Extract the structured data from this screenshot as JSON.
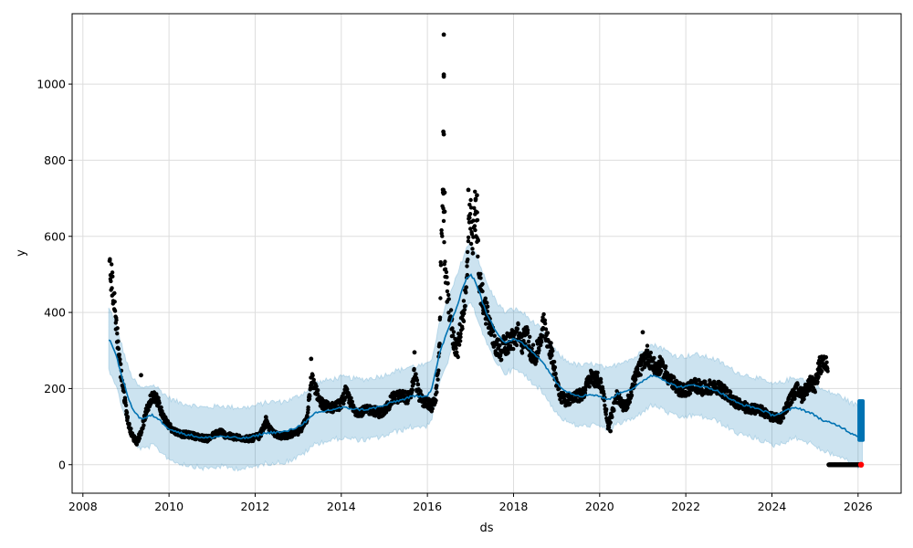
{
  "chart_data": {
    "type": "scatter",
    "subtype": "time-series forecast (observed points, fitted trend line, uncertainty band)",
    "xlabel": "ds",
    "ylabel": "y",
    "xlim": [
      2007.75,
      2027.0
    ],
    "ylim": [
      -75,
      1185
    ],
    "grid": true,
    "x_ticks": [
      {
        "value": 2008,
        "label": "2008"
      },
      {
        "value": 2010,
        "label": "2010"
      },
      {
        "value": 2012,
        "label": "2012"
      },
      {
        "value": 2014,
        "label": "2014"
      },
      {
        "value": 2016,
        "label": "2016"
      },
      {
        "value": 2018,
        "label": "2018"
      },
      {
        "value": 2020,
        "label": "2020"
      },
      {
        "value": 2022,
        "label": "2022"
      },
      {
        "value": 2024,
        "label": "2024"
      },
      {
        "value": 2026,
        "label": "2026"
      }
    ],
    "y_ticks": [
      {
        "value": 0,
        "label": "0"
      },
      {
        "value": 200,
        "label": "200"
      },
      {
        "value": 400,
        "label": "400"
      },
      {
        "value": 600,
        "label": "600"
      },
      {
        "value": 800,
        "label": "800"
      },
      {
        "value": 1000,
        "label": "1000"
      }
    ],
    "colors": {
      "observed": "#000000",
      "forecast": "#0072b2",
      "band": "#0072b2",
      "last_observed": "#ff0000",
      "grid": "#dddddd"
    },
    "observed_profile": [
      [
        2008.62,
        505
      ],
      [
        2008.68,
        480
      ],
      [
        2008.74,
        410
      ],
      [
        2008.8,
        340
      ],
      [
        2008.86,
        260
      ],
      [
        2008.95,
        190
      ],
      [
        2009.05,
        110
      ],
      [
        2009.15,
        75
      ],
      [
        2009.25,
        60
      ],
      [
        2009.35,
        85
      ],
      [
        2009.45,
        130
      ],
      [
        2009.55,
        165
      ],
      [
        2009.65,
        185
      ],
      [
        2009.75,
        165
      ],
      [
        2009.85,
        130
      ],
      [
        2009.95,
        110
      ],
      [
        2010.1,
        90
      ],
      [
        2010.3,
        80
      ],
      [
        2010.5,
        78
      ],
      [
        2010.7,
        72
      ],
      [
        2010.9,
        68
      ],
      [
        2011.0,
        75
      ],
      [
        2011.1,
        82
      ],
      [
        2011.2,
        88
      ],
      [
        2011.3,
        78
      ],
      [
        2011.5,
        72
      ],
      [
        2011.7,
        70
      ],
      [
        2011.9,
        68
      ],
      [
        2012.1,
        75
      ],
      [
        2012.25,
        110
      ],
      [
        2012.4,
        85
      ],
      [
        2012.6,
        75
      ],
      [
        2012.8,
        78
      ],
      [
        2013.0,
        85
      ],
      [
        2013.1,
        100
      ],
      [
        2013.2,
        120
      ],
      [
        2013.3,
        230
      ],
      [
        2013.4,
        200
      ],
      [
        2013.5,
        165
      ],
      [
        2013.6,
        155
      ],
      [
        2013.8,
        150
      ],
      [
        2014.0,
        160
      ],
      [
        2014.1,
        190
      ],
      [
        2014.2,
        170
      ],
      [
        2014.3,
        140
      ],
      [
        2014.5,
        140
      ],
      [
        2014.7,
        145
      ],
      [
        2014.9,
        135
      ],
      [
        2015.0,
        140
      ],
      [
        2015.2,
        175
      ],
      [
        2015.4,
        180
      ],
      [
        2015.6,
        175
      ],
      [
        2015.7,
        240
      ],
      [
        2015.8,
        185
      ],
      [
        2015.9,
        165
      ],
      [
        2016.0,
        165
      ],
      [
        2016.1,
        150
      ],
      [
        2016.2,
        180
      ],
      [
        2016.28,
        300
      ],
      [
        2016.32,
        590
      ],
      [
        2016.36,
        700
      ],
      [
        2016.42,
        480
      ],
      [
        2016.5,
        420
      ],
      [
        2016.6,
        330
      ],
      [
        2016.7,
        300
      ],
      [
        2016.8,
        380
      ],
      [
        2016.9,
        450
      ],
      [
        2016.95,
        600
      ],
      [
        2017.0,
        650
      ],
      [
        2017.05,
        560
      ],
      [
        2017.1,
        670
      ],
      [
        2017.15,
        640
      ],
      [
        2017.2,
        480
      ],
      [
        2017.3,
        430
      ],
      [
        2017.4,
        390
      ],
      [
        2017.5,
        340
      ],
      [
        2017.6,
        310
      ],
      [
        2017.7,
        300
      ],
      [
        2017.8,
        315
      ],
      [
        2018.0,
        330
      ],
      [
        2018.1,
        345
      ],
      [
        2018.2,
        320
      ],
      [
        2018.3,
        340
      ],
      [
        2018.4,
        300
      ],
      [
        2018.5,
        280
      ],
      [
        2018.6,
        320
      ],
      [
        2018.7,
        370
      ],
      [
        2018.8,
        330
      ],
      [
        2018.9,
        280
      ],
      [
        2019.0,
        220
      ],
      [
        2019.1,
        180
      ],
      [
        2019.2,
        170
      ],
      [
        2019.4,
        175
      ],
      [
        2019.6,
        185
      ],
      [
        2019.8,
        230
      ],
      [
        2020.0,
        220
      ],
      [
        2020.1,
        180
      ],
      [
        2020.2,
        100
      ],
      [
        2020.3,
        140
      ],
      [
        2020.4,
        180
      ],
      [
        2020.5,
        160
      ],
      [
        2020.6,
        150
      ],
      [
        2020.7,
        180
      ],
      [
        2020.8,
        220
      ],
      [
        2020.9,
        245
      ],
      [
        2021.0,
        270
      ],
      [
        2021.1,
        290
      ],
      [
        2021.2,
        270
      ],
      [
        2021.3,
        250
      ],
      [
        2021.4,
        260
      ],
      [
        2021.6,
        230
      ],
      [
        2021.8,
        200
      ],
      [
        2022.0,
        195
      ],
      [
        2022.2,
        210
      ],
      [
        2022.4,
        200
      ],
      [
        2022.6,
        205
      ],
      [
        2022.8,
        200
      ],
      [
        2023.0,
        180
      ],
      [
        2023.2,
        160
      ],
      [
        2023.4,
        150
      ],
      [
        2023.6,
        145
      ],
      [
        2023.8,
        140
      ],
      [
        2024.0,
        125
      ],
      [
        2024.2,
        120
      ],
      [
        2024.4,
        165
      ],
      [
        2024.5,
        185
      ],
      [
        2024.6,
        200
      ],
      [
        2024.7,
        180
      ],
      [
        2024.8,
        200
      ],
      [
        2024.9,
        215
      ],
      [
        2025.0,
        205
      ],
      [
        2025.1,
        260
      ],
      [
        2025.2,
        262
      ],
      [
        2025.3,
        258
      ]
    ],
    "observed_outliers": [
      [
        2016.38,
        1130
      ],
      [
        2016.38,
        1025
      ],
      [
        2016.38,
        1020
      ],
      [
        2016.37,
        875
      ],
      [
        2016.38,
        868
      ],
      [
        2016.37,
        722
      ],
      [
        2016.4,
        715
      ],
      [
        2016.4,
        665
      ],
      [
        2016.95,
        722
      ],
      [
        2017.15,
        708
      ],
      [
        2017.12,
        698
      ],
      [
        2013.3,
        278
      ],
      [
        2015.7,
        295
      ],
      [
        2021.0,
        348
      ],
      [
        2009.35,
        235
      ],
      [
        2012.25,
        125
      ],
      [
        2020.25,
        88
      ]
    ],
    "observed_zero_run": {
      "start": 2025.32,
      "end": 2026.05,
      "value": 0
    },
    "last_observed": [
      2026.07,
      0
    ],
    "forecast_column": {
      "x": 2026.07,
      "ymin": 60,
      "ymax": 172
    },
    "forecast": [
      [
        2008.6,
        330
      ],
      [
        2008.7,
        310
      ],
      [
        2008.8,
        275
      ],
      [
        2008.9,
        235
      ],
      [
        2009.0,
        195
      ],
      [
        2009.1,
        160
      ],
      [
        2009.2,
        140
      ],
      [
        2009.3,
        125
      ],
      [
        2009.4,
        120
      ],
      [
        2009.5,
        125
      ],
      [
        2009.6,
        130
      ],
      [
        2009.7,
        125
      ],
      [
        2009.8,
        115
      ],
      [
        2010.0,
        95
      ],
      [
        2010.2,
        85
      ],
      [
        2010.4,
        80
      ],
      [
        2010.6,
        75
      ],
      [
        2010.8,
        70
      ],
      [
        2011.0,
        72
      ],
      [
        2011.2,
        75
      ],
      [
        2011.4,
        72
      ],
      [
        2011.6,
        70
      ],
      [
        2011.8,
        70
      ],
      [
        2012.0,
        75
      ],
      [
        2012.2,
        82
      ],
      [
        2012.4,
        85
      ],
      [
        2012.6,
        85
      ],
      [
        2012.8,
        90
      ],
      [
        2013.0,
        100
      ],
      [
        2013.2,
        115
      ],
      [
        2013.4,
        135
      ],
      [
        2013.6,
        140
      ],
      [
        2013.8,
        145
      ],
      [
        2014.0,
        150
      ],
      [
        2014.2,
        148
      ],
      [
        2014.4,
        145
      ],
      [
        2014.6,
        145
      ],
      [
        2014.8,
        150
      ],
      [
        2015.0,
        155
      ],
      [
        2015.2,
        165
      ],
      [
        2015.4,
        170
      ],
      [
        2015.6,
        178
      ],
      [
        2015.8,
        180
      ],
      [
        2016.0,
        182
      ],
      [
        2016.1,
        200
      ],
      [
        2016.2,
        250
      ],
      [
        2016.3,
        300
      ],
      [
        2016.4,
        330
      ],
      [
        2016.5,
        360
      ],
      [
        2016.6,
        390
      ],
      [
        2016.7,
        420
      ],
      [
        2016.8,
        455
      ],
      [
        2016.9,
        490
      ],
      [
        2017.0,
        500
      ],
      [
        2017.1,
        485
      ],
      [
        2017.2,
        455
      ],
      [
        2017.3,
        420
      ],
      [
        2017.4,
        390
      ],
      [
        2017.6,
        350
      ],
      [
        2017.8,
        320
      ],
      [
        2018.0,
        330
      ],
      [
        2018.2,
        320
      ],
      [
        2018.4,
        300
      ],
      [
        2018.6,
        280
      ],
      [
        2018.8,
        250
      ],
      [
        2019.0,
        215
      ],
      [
        2019.2,
        195
      ],
      [
        2019.4,
        185
      ],
      [
        2019.6,
        180
      ],
      [
        2019.8,
        185
      ],
      [
        2020.0,
        180
      ],
      [
        2020.2,
        170
      ],
      [
        2020.4,
        185
      ],
      [
        2020.6,
        195
      ],
      [
        2020.8,
        200
      ],
      [
        2021.0,
        220
      ],
      [
        2021.2,
        235
      ],
      [
        2021.4,
        230
      ],
      [
        2021.6,
        215
      ],
      [
        2021.8,
        205
      ],
      [
        2022.0,
        205
      ],
      [
        2022.2,
        210
      ],
      [
        2022.4,
        205
      ],
      [
        2022.6,
        200
      ],
      [
        2022.8,
        190
      ],
      [
        2023.0,
        175
      ],
      [
        2023.2,
        162
      ],
      [
        2023.4,
        155
      ],
      [
        2023.6,
        150
      ],
      [
        2023.8,
        142
      ],
      [
        2024.0,
        130
      ],
      [
        2024.2,
        135
      ],
      [
        2024.4,
        145
      ],
      [
        2024.6,
        150
      ],
      [
        2024.8,
        140
      ],
      [
        2025.0,
        130
      ],
      [
        2025.2,
        115
      ],
      [
        2025.4,
        108
      ],
      [
        2025.6,
        100
      ],
      [
        2025.8,
        85
      ],
      [
        2026.0,
        75
      ],
      [
        2026.1,
        80
      ]
    ],
    "forecast_band_halfwidth": 80
  }
}
